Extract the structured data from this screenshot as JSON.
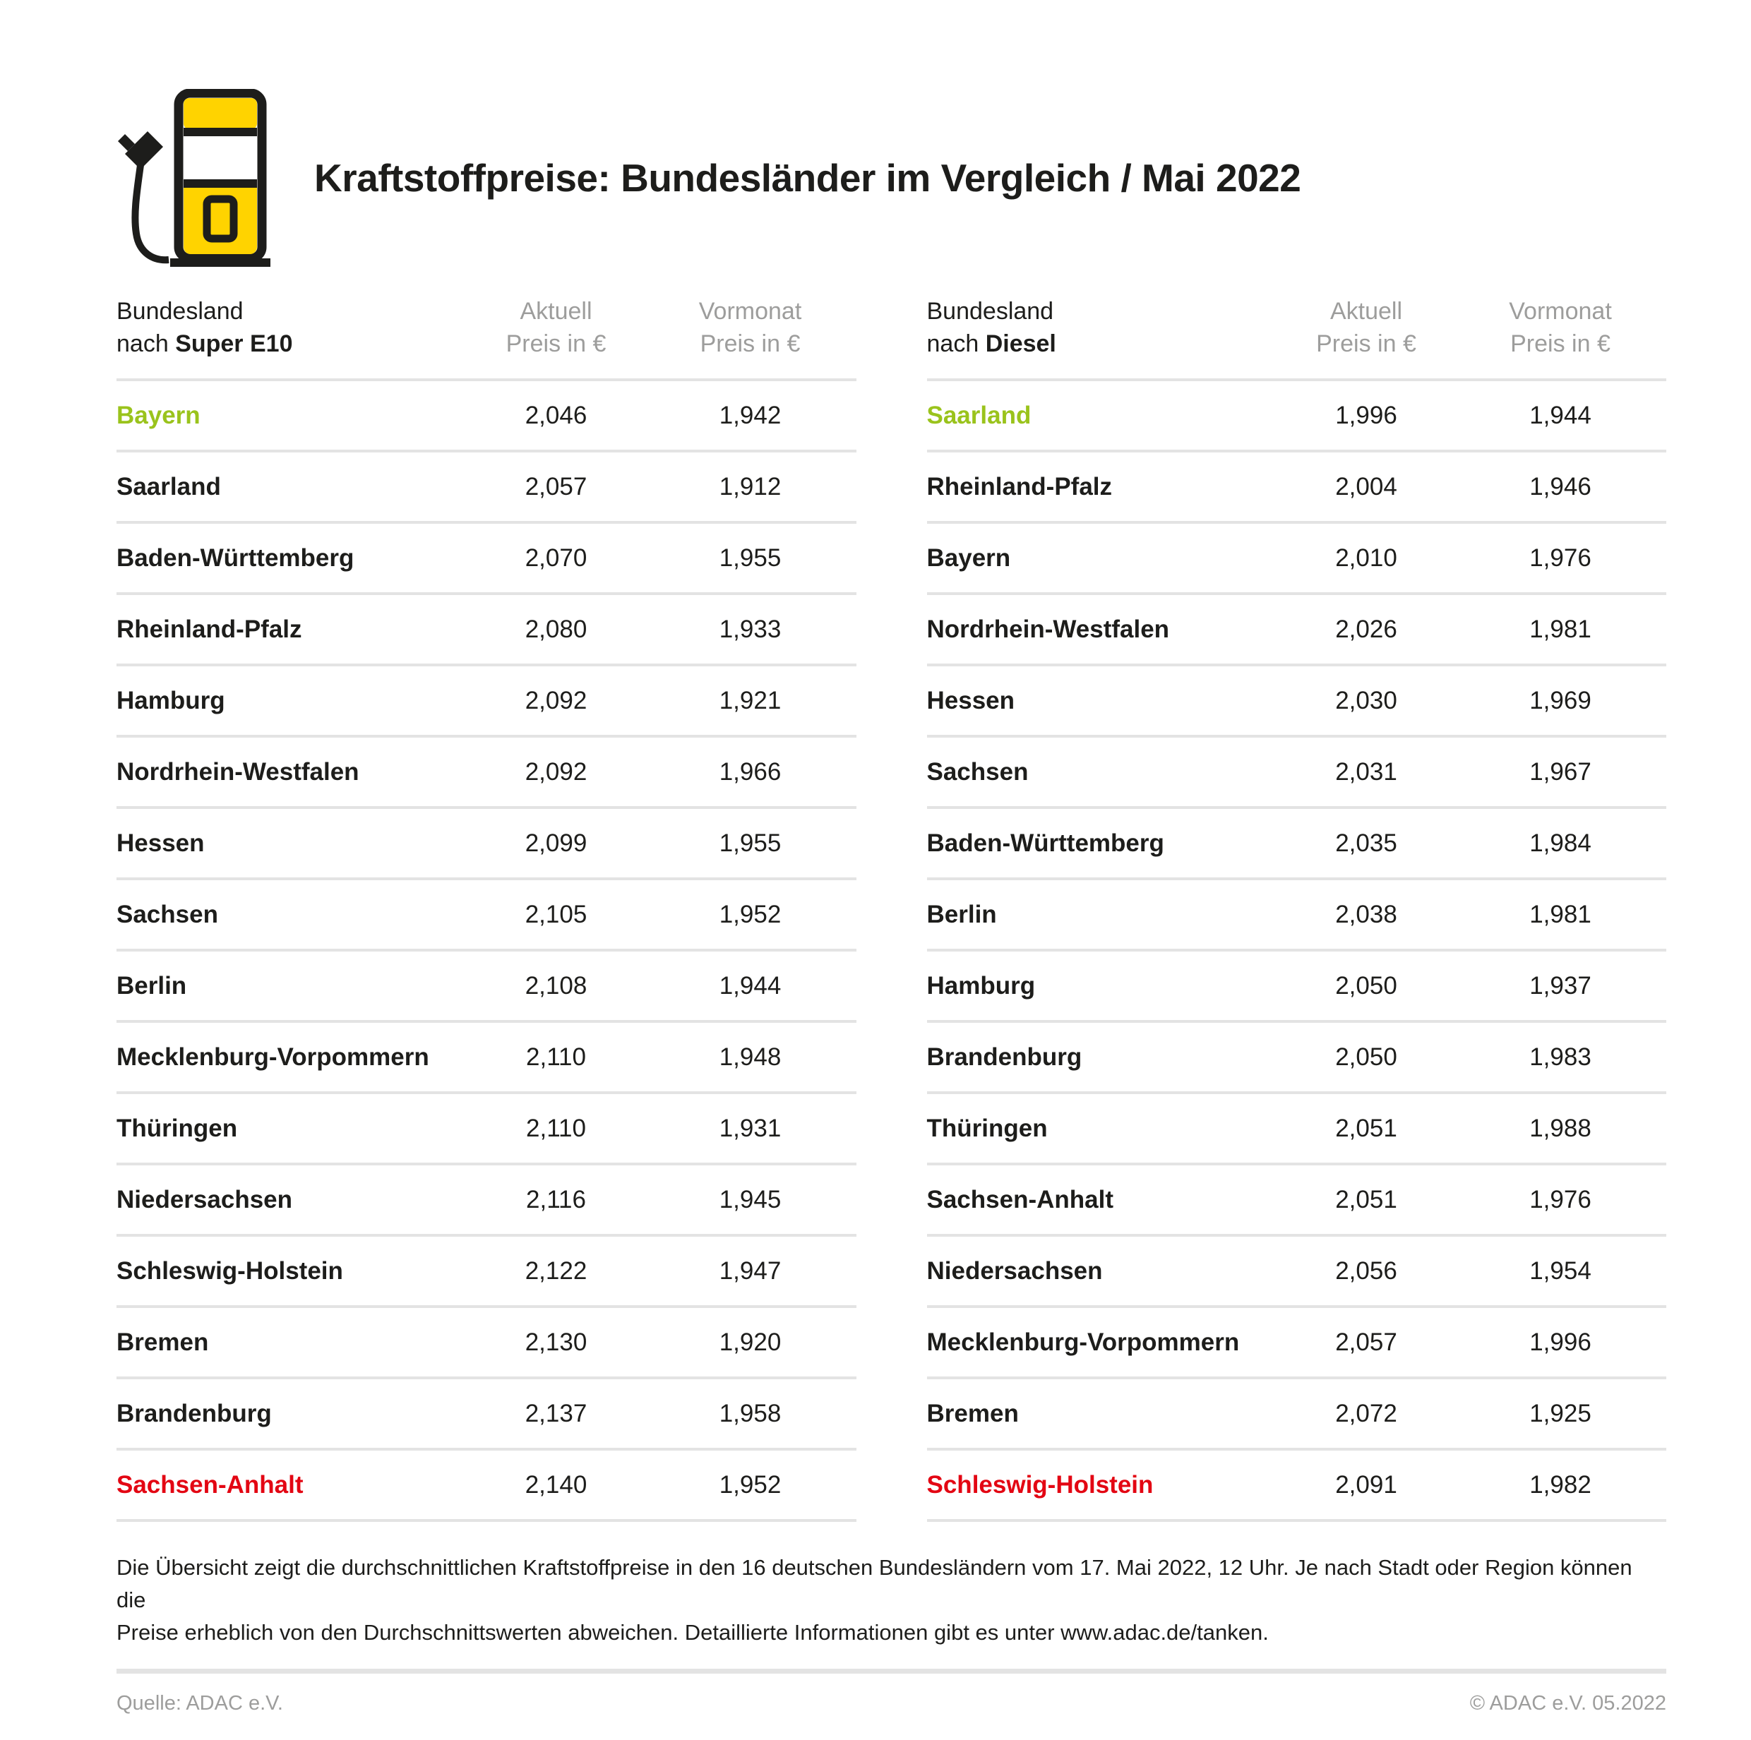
{
  "title": "Kraftstoffpreise: Bundesländer im Vergleich / Mai 2022",
  "colors": {
    "brand-yellow": "#FFD300",
    "accent-green": "#9AC31C",
    "accent-red": "#E30613",
    "text-dark": "#1D1D1B",
    "text-gray": "#9D9D9C",
    "line-gray": "#E3E3E3"
  },
  "icon": {
    "name": "fuel-pump-icon"
  },
  "tables": [
    {
      "header": {
        "col1_line1": "Bundesland",
        "col1_line2_prefix": "nach ",
        "col1_line2_bold": "Super E10",
        "col2_line1": "Aktuell",
        "col2_line2": "Preis in €",
        "col3_line1": "Vormonat",
        "col3_line2": "Preis in €"
      },
      "rows": [
        {
          "state": "Bayern",
          "aktuell": "2,046",
          "vormonat": "1,942",
          "highlight": "green"
        },
        {
          "state": "Saarland",
          "aktuell": "2,057",
          "vormonat": "1,912",
          "highlight": ""
        },
        {
          "state": "Baden-Württemberg",
          "aktuell": "2,070",
          "vormonat": "1,955",
          "highlight": ""
        },
        {
          "state": "Rheinland-Pfalz",
          "aktuell": "2,080",
          "vormonat": "1,933",
          "highlight": ""
        },
        {
          "state": "Hamburg",
          "aktuell": "2,092",
          "vormonat": "1,921",
          "highlight": ""
        },
        {
          "state": "Nordrhein-Westfalen",
          "aktuell": "2,092",
          "vormonat": "1,966",
          "highlight": ""
        },
        {
          "state": "Hessen",
          "aktuell": "2,099",
          "vormonat": "1,955",
          "highlight": ""
        },
        {
          "state": "Sachsen",
          "aktuell": "2,105",
          "vormonat": "1,952",
          "highlight": ""
        },
        {
          "state": "Berlin",
          "aktuell": "2,108",
          "vormonat": "1,944",
          "highlight": ""
        },
        {
          "state": "Mecklenburg-Vorpommern",
          "aktuell": "2,110",
          "vormonat": "1,948",
          "highlight": ""
        },
        {
          "state": "Thüringen",
          "aktuell": "2,110",
          "vormonat": "1,931",
          "highlight": ""
        },
        {
          "state": "Niedersachsen",
          "aktuell": "2,116",
          "vormonat": "1,945",
          "highlight": ""
        },
        {
          "state": "Schleswig-Holstein",
          "aktuell": "2,122",
          "vormonat": "1,947",
          "highlight": ""
        },
        {
          "state": "Bremen",
          "aktuell": "2,130",
          "vormonat": "1,920",
          "highlight": ""
        },
        {
          "state": "Brandenburg",
          "aktuell": "2,137",
          "vormonat": "1,958",
          "highlight": ""
        },
        {
          "state": "Sachsen-Anhalt",
          "aktuell": "2,140",
          "vormonat": "1,952",
          "highlight": "red"
        }
      ]
    },
    {
      "header": {
        "col1_line1": "Bundesland",
        "col1_line2_prefix": "nach ",
        "col1_line2_bold": "Diesel",
        "col2_line1": "Aktuell",
        "col2_line2": "Preis in €",
        "col3_line1": "Vormonat",
        "col3_line2": "Preis in €"
      },
      "rows": [
        {
          "state": "Saarland",
          "aktuell": "1,996",
          "vormonat": "1,944",
          "highlight": "green"
        },
        {
          "state": "Rheinland-Pfalz",
          "aktuell": "2,004",
          "vormonat": "1,946",
          "highlight": ""
        },
        {
          "state": "Bayern",
          "aktuell": "2,010",
          "vormonat": "1,976",
          "highlight": ""
        },
        {
          "state": "Nordrhein-Westfalen",
          "aktuell": "2,026",
          "vormonat": "1,981",
          "highlight": ""
        },
        {
          "state": "Hessen",
          "aktuell": "2,030",
          "vormonat": "1,969",
          "highlight": ""
        },
        {
          "state": "Sachsen",
          "aktuell": "2,031",
          "vormonat": "1,967",
          "highlight": ""
        },
        {
          "state": "Baden-Württemberg",
          "aktuell": "2,035",
          "vormonat": "1,984",
          "highlight": ""
        },
        {
          "state": "Berlin",
          "aktuell": "2,038",
          "vormonat": "1,981",
          "highlight": ""
        },
        {
          "state": "Hamburg",
          "aktuell": "2,050",
          "vormonat": "1,937",
          "highlight": ""
        },
        {
          "state": "Brandenburg",
          "aktuell": "2,050",
          "vormonat": "1,983",
          "highlight": ""
        },
        {
          "state": "Thüringen",
          "aktuell": "2,051",
          "vormonat": "1,988",
          "highlight": ""
        },
        {
          "state": "Sachsen-Anhalt",
          "aktuell": "2,051",
          "vormonat": "1,976",
          "highlight": ""
        },
        {
          "state": "Niedersachsen",
          "aktuell": "2,056",
          "vormonat": "1,954",
          "highlight": ""
        },
        {
          "state": "Mecklenburg-Vorpommern",
          "aktuell": "2,057",
          "vormonat": "1,996",
          "highlight": ""
        },
        {
          "state": "Bremen",
          "aktuell": "2,072",
          "vormonat": "1,925",
          "highlight": ""
        },
        {
          "state": "Schleswig-Holstein",
          "aktuell": "2,091",
          "vormonat": "1,982",
          "highlight": "red"
        }
      ]
    }
  ],
  "footnote": {
    "line1": "Die Übersicht zeigt die durchschnittlichen Kraftstoffpreise in den 16 deutschen Bundesländern vom 17. Mai 2022, 12 Uhr. Je nach Stadt oder Region können die",
    "line2": "Preise erheblich von den Durchschnittswerten abweichen. Detaillierte Informationen gibt es unter www.adac.de/tanken."
  },
  "footer": {
    "left": "Quelle: ADAC e.V.",
    "right": "© ADAC e.V. 05.2022"
  },
  "chart_data": [
    {
      "type": "table",
      "title": "Bundesland nach Super E10",
      "columns": [
        "Bundesland",
        "Aktuell Preis in €",
        "Vormonat Preis in €"
      ],
      "rows": [
        [
          "Bayern",
          2.046,
          1.942
        ],
        [
          "Saarland",
          2.057,
          1.912
        ],
        [
          "Baden-Württemberg",
          2.07,
          1.955
        ],
        [
          "Rheinland-Pfalz",
          2.08,
          1.933
        ],
        [
          "Hamburg",
          2.092,
          1.921
        ],
        [
          "Nordrhein-Westfalen",
          2.092,
          1.966
        ],
        [
          "Hessen",
          2.099,
          1.955
        ],
        [
          "Sachsen",
          2.105,
          1.952
        ],
        [
          "Berlin",
          2.108,
          1.944
        ],
        [
          "Mecklenburg-Vorpommern",
          2.11,
          1.948
        ],
        [
          "Thüringen",
          2.11,
          1.931
        ],
        [
          "Niedersachsen",
          2.116,
          1.945
        ],
        [
          "Schleswig-Holstein",
          2.122,
          1.947
        ],
        [
          "Bremen",
          2.13,
          1.92
        ],
        [
          "Brandenburg",
          2.137,
          1.958
        ],
        [
          "Sachsen-Anhalt",
          2.14,
          1.952
        ]
      ]
    },
    {
      "type": "table",
      "title": "Bundesland nach Diesel",
      "columns": [
        "Bundesland",
        "Aktuell Preis in €",
        "Vormonat Preis in €"
      ],
      "rows": [
        [
          "Saarland",
          1.996,
          1.944
        ],
        [
          "Rheinland-Pfalz",
          2.004,
          1.946
        ],
        [
          "Bayern",
          2.01,
          1.976
        ],
        [
          "Nordrhein-Westfalen",
          2.026,
          1.981
        ],
        [
          "Hessen",
          2.03,
          1.969
        ],
        [
          "Sachsen",
          2.031,
          1.967
        ],
        [
          "Baden-Württemberg",
          2.035,
          1.984
        ],
        [
          "Berlin",
          2.038,
          1.981
        ],
        [
          "Hamburg",
          2.05,
          1.937
        ],
        [
          "Brandenburg",
          2.05,
          1.983
        ],
        [
          "Thüringen",
          2.051,
          1.988
        ],
        [
          "Sachsen-Anhalt",
          2.051,
          1.976
        ],
        [
          "Niedersachsen",
          2.056,
          1.954
        ],
        [
          "Mecklenburg-Vorpommern",
          2.057,
          1.996
        ],
        [
          "Bremen",
          2.072,
          1.925
        ],
        [
          "Schleswig-Holstein",
          2.091,
          1.982
        ]
      ]
    }
  ]
}
